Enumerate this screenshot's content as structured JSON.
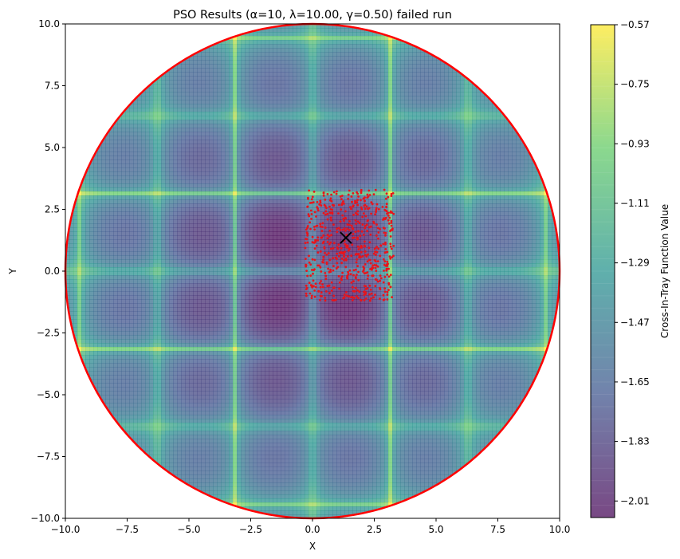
{
  "chart_data": {
    "type": "heatmap",
    "title": "PSO Results (α=10, λ=10.00, γ=0.50) failed run",
    "xlabel": "X",
    "ylabel": "Y",
    "xlim": [
      -10,
      10
    ],
    "ylim": [
      -10,
      10
    ],
    "x_ticks": [
      "−10.0",
      "−7.5",
      "−5.0",
      "−2.5",
      "0.0",
      "2.5",
      "5.0",
      "7.5",
      "10.0"
    ],
    "y_ticks": [
      "−10.0",
      "−7.5",
      "−5.0",
      "−2.5",
      "0.0",
      "2.5",
      "5.0",
      "7.5",
      "10.0"
    ],
    "x_tick_values": [
      -10,
      -7.5,
      -5,
      -2.5,
      0,
      2.5,
      5,
      7.5,
      10
    ],
    "y_tick_values": [
      -10,
      -7.5,
      -5,
      -2.5,
      0,
      2.5,
      5,
      7.5,
      10
    ],
    "function": "Cross-In-Tray",
    "colormap": "viridis",
    "feasible_region": {
      "shape": "circle",
      "center": [
        0,
        0
      ],
      "radius": 10,
      "color": "#ff0000"
    },
    "particles": {
      "center": [
        1.35,
        1.35
      ],
      "x_spread": [
        -0.3,
        3.3
      ],
      "y_spread": [
        -1.2,
        3.3
      ],
      "count": 600,
      "color": "#e8141b"
    },
    "best_point": {
      "x": 1.35,
      "y": 1.35,
      "marker": "x",
      "color": "#000000"
    },
    "colorbar": {
      "label": "Cross-In-Tray Function Value",
      "ticks": [
        "−0.57",
        "−0.75",
        "−0.93",
        "−1.11",
        "−1.29",
        "−1.47",
        "−1.65",
        "−1.83",
        "−2.01"
      ],
      "tick_values": [
        -0.57,
        -0.75,
        -0.93,
        -1.11,
        -1.29,
        -1.47,
        -1.65,
        -1.83,
        -2.01
      ],
      "range": [
        -2.06,
        -0.57
      ]
    },
    "grid": false
  }
}
